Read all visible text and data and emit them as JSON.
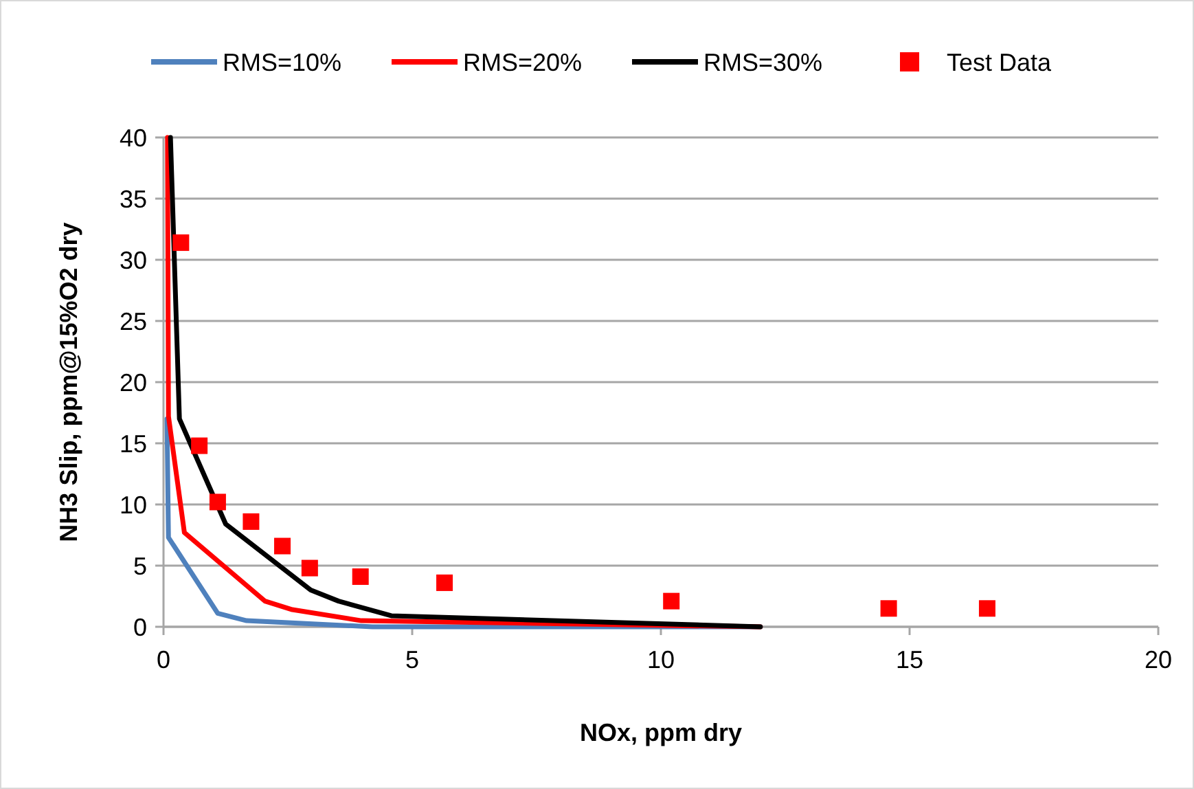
{
  "chart_data": {
    "type": "line",
    "xlabel": "NOx, ppm dry",
    "ylabel": "NH3 Slip, ppm@15%O2 dry",
    "xlim": [
      0,
      20
    ],
    "xticks": [
      0,
      5,
      10,
      15,
      20
    ],
    "ylim": [
      0,
      40
    ],
    "yticks": [
      0,
      5,
      10,
      15,
      20,
      25,
      30,
      35,
      40
    ],
    "grid": "y",
    "legend": "top",
    "marker": "none",
    "series": [
      {
        "name": "RMS=10%",
        "color": "#4f81bd",
        "x": [
          0.07,
          0.1,
          1.09,
          1.67,
          4.2,
          12
        ],
        "values": [
          17,
          7.3,
          1.1,
          0.5,
          0,
          0
        ]
      },
      {
        "name": "RMS=20%",
        "color": "#ff0000",
        "x": [
          0.08,
          0.1,
          0.42,
          2.04,
          2.59,
          3.98,
          12
        ],
        "values": [
          40,
          17.2,
          7.7,
          2.1,
          1.4,
          0.5,
          0
        ]
      },
      {
        "name": "RMS=30%",
        "color": "#000000",
        "x": [
          0.14,
          0.32,
          1.25,
          2.96,
          3.52,
          4.58,
          12
        ],
        "values": [
          40,
          17,
          8.4,
          3,
          2.1,
          0.9,
          0
        ]
      },
      {
        "name": "Test Data",
        "type": "scatter",
        "marker": "square",
        "color": "#ff0000",
        "x": [
          0.35,
          0.72,
          1.09,
          1.76,
          2.39,
          2.94,
          3.96,
          5.65,
          10.21,
          14.58,
          16.56
        ],
        "values": [
          31.4,
          14.8,
          10.2,
          8.6,
          6.6,
          4.8,
          4.1,
          3.6,
          2.1,
          1.5,
          1.5
        ]
      }
    ]
  }
}
